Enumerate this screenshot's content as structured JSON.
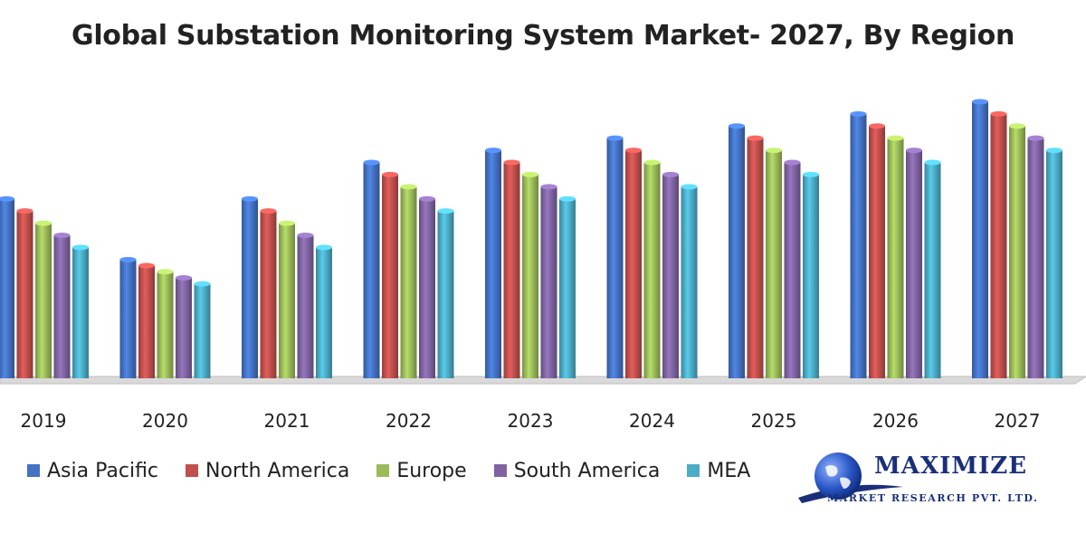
{
  "chart_data": {
    "type": "bar",
    "title": "Global Substation Monitoring System Market- 2027, By Region",
    "categories": [
      "2019",
      "2020",
      "2021",
      "2022",
      "2023",
      "2024",
      "2025",
      "2026",
      "2027"
    ],
    "series": [
      {
        "name": "Asia Pacific",
        "color": "#4472c4",
        "values": [
          15,
          10,
          15,
          18,
          19,
          20,
          21,
          22,
          23
        ]
      },
      {
        "name": "North America",
        "color": "#c0504d",
        "values": [
          14,
          9.5,
          14,
          17,
          18,
          19,
          20,
          21,
          22
        ]
      },
      {
        "name": "Europe",
        "color": "#9bbb59",
        "values": [
          13,
          9,
          13,
          16,
          17,
          18,
          19,
          20,
          21
        ]
      },
      {
        "name": "South America",
        "color": "#8064a2",
        "values": [
          12,
          8.5,
          12,
          15,
          16,
          17,
          18,
          19,
          20
        ]
      },
      {
        "name": "MEA",
        "color": "#4bacc6",
        "values": [
          11,
          8,
          11,
          14,
          15,
          16,
          17,
          18,
          19
        ]
      }
    ],
    "ylim": [
      0,
      24
    ],
    "grid": false,
    "legend_position": "bottom"
  },
  "logo": {
    "name": "MAXIMIZE",
    "subtitle": "MARKET RESEARCH PVT. LTD."
  }
}
